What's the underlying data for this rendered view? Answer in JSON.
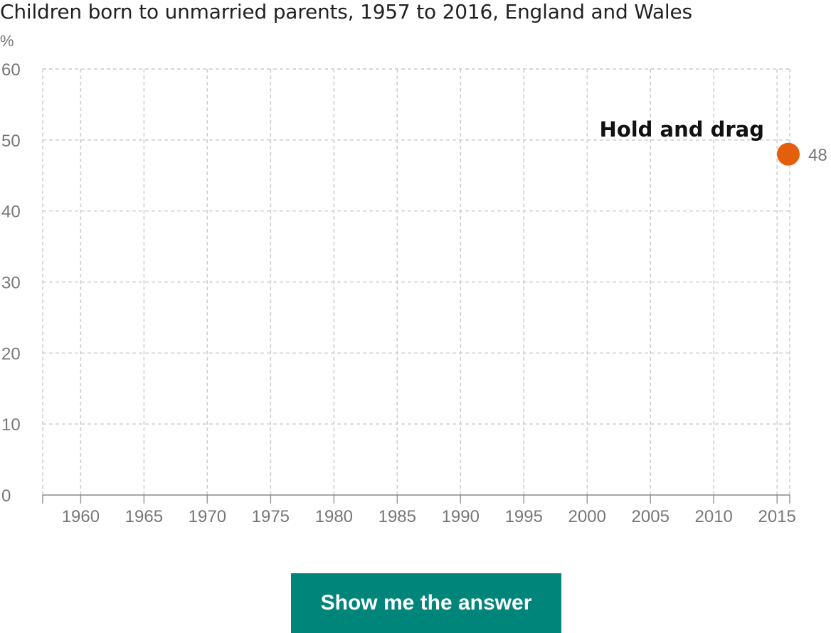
{
  "chart_data": {
    "type": "line",
    "title": "Children born to unmarried parents, 1957 to 2016, England and Wales",
    "ylabel": "%",
    "xlabel": "",
    "xlim": [
      1957,
      2016
    ],
    "ylim": [
      0,
      60
    ],
    "x_ticks": [
      1960,
      1965,
      1970,
      1975,
      1980,
      1985,
      1990,
      1995,
      2000,
      2005,
      2010,
      2015
    ],
    "y_ticks": [
      0,
      10,
      20,
      30,
      40,
      50,
      60
    ],
    "grid": true,
    "grid_style": "dashed",
    "points": [
      {
        "x": 2016,
        "y": 48,
        "label": "48"
      }
    ],
    "annotation": "Hold and drag",
    "marker_color": "#e35f0c",
    "grid_color": "#cccccc",
    "tick_label_color": "#777777"
  },
  "button": {
    "label": "Show me the answer",
    "color": "#00857b"
  }
}
